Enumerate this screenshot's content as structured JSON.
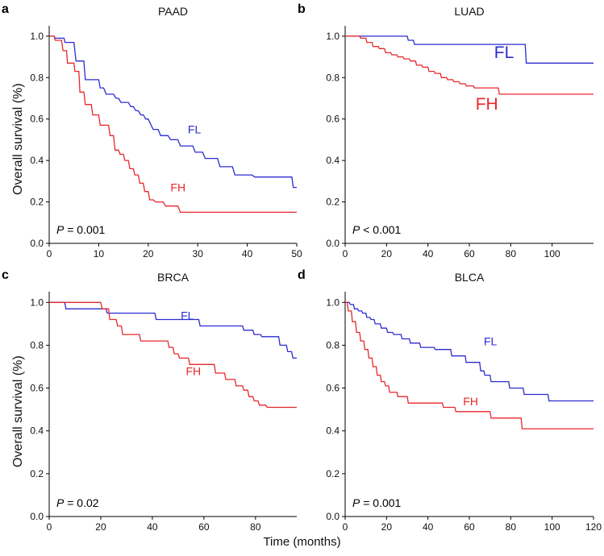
{
  "figure": {
    "xlabel": "Time (months)",
    "ylabel": "Overall survival (%)"
  },
  "chart_data": [
    {
      "type": "line",
      "panel_letter": "a",
      "title": "PAAD",
      "xlim": [
        0,
        50
      ],
      "xticks": [
        0,
        10,
        20,
        30,
        40,
        50
      ],
      "ylim": [
        0,
        1.05
      ],
      "yticks": [
        "0.0",
        "0.2",
        "0.4",
        "0.6",
        "0.8",
        "1.0"
      ],
      "pvalue": {
        "p": "P",
        "rest": " = 0.001"
      },
      "series": [
        {
          "name": "FL",
          "color": "#2b2bd0",
          "label_style": "small",
          "label_at": [
            28,
            0.53
          ],
          "x": [
            0,
            1,
            1.2,
            3,
            3.2,
            5,
            5.4,
            7,
            7.3,
            10,
            10.3,
            11,
            11.5,
            13,
            13.5,
            14,
            14.5,
            16,
            16.5,
            17,
            17.5,
            18,
            18.5,
            19,
            19.5,
            20,
            21,
            22,
            22.5,
            24,
            24.5,
            26,
            26.5,
            29,
            29.5,
            31,
            31.5,
            34,
            34.5,
            37,
            37.5,
            41,
            41.5,
            49,
            49.3,
            50
          ],
          "y": [
            1.0,
            1.0,
            0.99,
            0.99,
            0.97,
            0.97,
            0.88,
            0.88,
            0.79,
            0.79,
            0.75,
            0.75,
            0.72,
            0.72,
            0.7,
            0.7,
            0.68,
            0.68,
            0.66,
            0.66,
            0.64,
            0.64,
            0.62,
            0.62,
            0.6,
            0.6,
            0.55,
            0.55,
            0.52,
            0.52,
            0.5,
            0.5,
            0.47,
            0.47,
            0.44,
            0.44,
            0.41,
            0.41,
            0.37,
            0.37,
            0.33,
            0.33,
            0.32,
            0.32,
            0.27,
            0.27
          ]
        },
        {
          "name": "FH",
          "color": "#e8262b",
          "label_style": "small",
          "label_at": [
            24.5,
            0.25
          ],
          "x": [
            0,
            1,
            1.2,
            2.5,
            2.8,
            3.5,
            3.7,
            5,
            5.2,
            6,
            6.2,
            7,
            7.3,
            8.5,
            8.8,
            10,
            10.3,
            12,
            12.3,
            13,
            13.3,
            14,
            14.3,
            15,
            15.3,
            16,
            16.3,
            17,
            17.3,
            18,
            18.3,
            19,
            19.3,
            20,
            20.3,
            21,
            21.5,
            23,
            23.5,
            26,
            26.5,
            50
          ],
          "y": [
            1.0,
            1.0,
            0.98,
            0.98,
            0.93,
            0.93,
            0.87,
            0.87,
            0.83,
            0.83,
            0.73,
            0.73,
            0.67,
            0.67,
            0.62,
            0.62,
            0.57,
            0.57,
            0.52,
            0.52,
            0.45,
            0.45,
            0.43,
            0.43,
            0.4,
            0.4,
            0.36,
            0.36,
            0.33,
            0.33,
            0.29,
            0.29,
            0.25,
            0.25,
            0.21,
            0.21,
            0.2,
            0.2,
            0.18,
            0.18,
            0.15,
            0.15
          ]
        }
      ]
    },
    {
      "type": "line",
      "panel_letter": "b",
      "title": "LUAD",
      "xlim": [
        0,
        120
      ],
      "xticks": [
        0,
        20,
        40,
        60,
        80,
        100
      ],
      "ylim": [
        0,
        1.05
      ],
      "yticks": [
        "0.0",
        "0.2",
        "0.4",
        "0.6",
        "0.8",
        "1.0"
      ],
      "pvalue": {
        "p": "P",
        "rest": " < 0.001"
      },
      "series": [
        {
          "name": "FL",
          "color": "#2b2bd0",
          "label_style": "large",
          "label_at": [
            72,
            0.895
          ],
          "x": [
            0,
            30,
            30.5,
            33,
            33.5,
            87,
            87.5,
            120
          ],
          "y": [
            1.0,
            1.0,
            0.98,
            0.98,
            0.96,
            0.96,
            0.87,
            0.87
          ]
        },
        {
          "name": "FH",
          "color": "#e8262b",
          "label_style": "large",
          "label_at": [
            63,
            0.645
          ],
          "x": [
            0,
            7,
            7.5,
            10,
            10.5,
            13,
            13.5,
            16,
            16.5,
            19,
            19.5,
            22,
            22.5,
            25,
            25.5,
            28,
            28.5,
            31,
            31.5,
            34,
            34.5,
            37,
            37.5,
            40,
            40.5,
            43,
            43.5,
            46,
            46.5,
            49,
            49.5,
            52,
            52.5,
            55,
            55.5,
            58,
            58.5,
            62,
            62.5,
            74,
            74.5,
            120
          ],
          "y": [
            1.0,
            1.0,
            0.99,
            0.99,
            0.97,
            0.97,
            0.95,
            0.95,
            0.94,
            0.94,
            0.92,
            0.92,
            0.91,
            0.91,
            0.9,
            0.9,
            0.89,
            0.89,
            0.88,
            0.88,
            0.86,
            0.86,
            0.85,
            0.85,
            0.83,
            0.83,
            0.82,
            0.82,
            0.8,
            0.8,
            0.79,
            0.79,
            0.78,
            0.78,
            0.77,
            0.77,
            0.76,
            0.76,
            0.75,
            0.75,
            0.72,
            0.72
          ]
        }
      ]
    },
    {
      "type": "line",
      "panel_letter": "c",
      "title": "BRCA",
      "xlim": [
        0,
        96
      ],
      "xticks": [
        0,
        20,
        40,
        60,
        80
      ],
      "ylim": [
        0,
        1.05
      ],
      "yticks": [
        "0.0",
        "0.2",
        "0.4",
        "0.6",
        "0.8",
        "1.0"
      ],
      "pvalue": {
        "p": "P",
        "rest": " = 0.02"
      },
      "series": [
        {
          "name": "FL",
          "color": "#2b2bd0",
          "label_style": "small",
          "label_at": [
            51,
            0.92
          ],
          "x": [
            0,
            6,
            6.5,
            22,
            22.5,
            41,
            41.5,
            58,
            58.5,
            75,
            75.5,
            79,
            79.5,
            82,
            82.5,
            89,
            89.5,
            92,
            92.5,
            94,
            94.5,
            96
          ],
          "y": [
            1.0,
            1.0,
            0.97,
            0.97,
            0.95,
            0.95,
            0.92,
            0.92,
            0.89,
            0.89,
            0.87,
            0.87,
            0.85,
            0.85,
            0.84,
            0.84,
            0.8,
            0.8,
            0.77,
            0.77,
            0.74,
            0.74
          ]
        },
        {
          "name": "FH",
          "color": "#e8262b",
          "label_style": "small",
          "label_at": [
            53,
            0.66
          ],
          "x": [
            0,
            20,
            20.5,
            23,
            23.5,
            26,
            26.5,
            28,
            28.5,
            35,
            35.5,
            46,
            46.5,
            48,
            48.5,
            50,
            50.5,
            54,
            54.5,
            64,
            64.5,
            68,
            68.5,
            72,
            72.5,
            75,
            75.5,
            77,
            77.5,
            79,
            79.5,
            81,
            81.5,
            84,
            84.5,
            96
          ],
          "y": [
            1.0,
            1.0,
            0.97,
            0.97,
            0.92,
            0.92,
            0.89,
            0.89,
            0.85,
            0.85,
            0.82,
            0.82,
            0.79,
            0.79,
            0.76,
            0.76,
            0.74,
            0.74,
            0.71,
            0.71,
            0.67,
            0.67,
            0.64,
            0.64,
            0.61,
            0.61,
            0.59,
            0.59,
            0.56,
            0.56,
            0.54,
            0.54,
            0.52,
            0.52,
            0.51,
            0.51
          ]
        }
      ]
    },
    {
      "type": "line",
      "panel_letter": "d",
      "title": "BLCA",
      "xlim": [
        0,
        120
      ],
      "xticks": [
        0,
        20,
        40,
        60,
        80,
        100,
        120
      ],
      "ylim": [
        0,
        1.05
      ],
      "yticks": [
        "0.0",
        "0.2",
        "0.4",
        "0.6",
        "0.8",
        "1.0"
      ],
      "pvalue": {
        "p": "P",
        "rest": " = 0.001"
      },
      "series": [
        {
          "name": "FL",
          "color": "#2b2bd0",
          "label_style": "small",
          "label_at": [
            67,
            0.8
          ],
          "x": [
            0,
            2,
            2.5,
            4,
            4.5,
            6,
            6.5,
            8,
            8.5,
            10,
            10.5,
            12,
            12.5,
            14,
            14.5,
            17,
            17.5,
            20,
            20.5,
            23,
            23.5,
            27,
            27.5,
            31,
            31.5,
            36,
            36.5,
            43,
            43.5,
            51,
            51.5,
            58,
            58.5,
            65,
            65.5,
            67,
            67.5,
            70,
            70.5,
            79,
            79.5,
            86,
            86.5,
            98,
            98.5,
            120
          ],
          "y": [
            1.0,
            1.0,
            0.99,
            0.99,
            0.97,
            0.97,
            0.96,
            0.96,
            0.95,
            0.95,
            0.93,
            0.93,
            0.92,
            0.92,
            0.9,
            0.9,
            0.88,
            0.88,
            0.86,
            0.86,
            0.85,
            0.85,
            0.83,
            0.83,
            0.81,
            0.81,
            0.79,
            0.79,
            0.78,
            0.78,
            0.75,
            0.75,
            0.72,
            0.72,
            0.68,
            0.68,
            0.66,
            0.66,
            0.63,
            0.63,
            0.6,
            0.6,
            0.57,
            0.57,
            0.54,
            0.54
          ]
        },
        {
          "name": "FH",
          "color": "#e8262b",
          "label_style": "small",
          "label_at": [
            57,
            0.52
          ],
          "x": [
            0,
            1,
            1.5,
            3,
            3.5,
            5,
            5.5,
            7,
            7.5,
            9,
            9.5,
            11,
            11.5,
            13,
            13.5,
            15,
            15.5,
            17,
            17.5,
            19,
            19.5,
            21,
            21.5,
            25,
            25.5,
            30,
            30.5,
            47,
            47.5,
            53,
            53.5,
            70,
            70.5,
            85,
            85.5,
            120
          ],
          "y": [
            1.0,
            1.0,
            0.96,
            0.96,
            0.91,
            0.91,
            0.86,
            0.86,
            0.82,
            0.82,
            0.78,
            0.78,
            0.74,
            0.74,
            0.7,
            0.7,
            0.66,
            0.66,
            0.63,
            0.63,
            0.61,
            0.61,
            0.58,
            0.58,
            0.56,
            0.56,
            0.53,
            0.53,
            0.51,
            0.51,
            0.49,
            0.49,
            0.46,
            0.46,
            0.41,
            0.41
          ]
        }
      ]
    }
  ]
}
